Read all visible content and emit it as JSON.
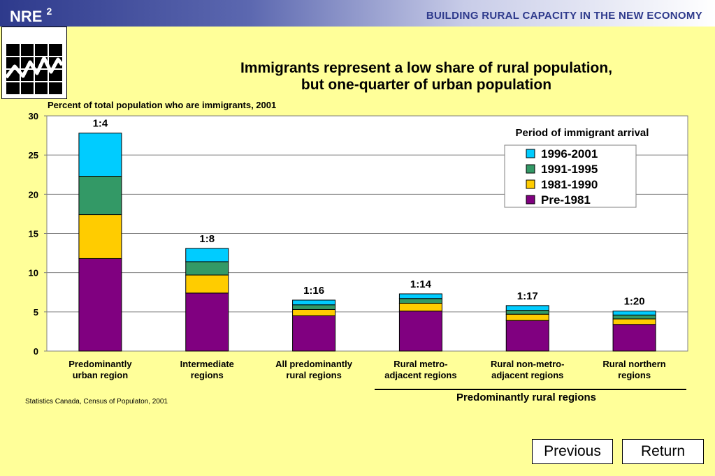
{
  "header": {
    "logo_text": "NRE",
    "logo_sup": "2",
    "tagline": "BUILDING RURAL CAPACITY IN THE NEW ECONOMY"
  },
  "logo_icon": "line-chart-grid-icon",
  "title_line1": "Immigrants represent a low share of rural population,",
  "title_line2": "but one-quarter of urban population",
  "chart_data": {
    "type": "bar",
    "stacked": true,
    "ylabel": "Percent of total population who are immigrants, 2001",
    "ylim": [
      0,
      30
    ],
    "yticks": [
      "0",
      "5",
      "10",
      "15",
      "20",
      "25",
      "30"
    ],
    "grid": true,
    "legend_title": "Period of immigrant arrival",
    "legend_position": "top-right",
    "categories": [
      [
        "Predominantly",
        "urban region"
      ],
      [
        "Intermediate",
        "regions"
      ],
      [
        "All predominantly",
        "rural regions"
      ],
      [
        "Rural metro-",
        "adjacent regions"
      ],
      [
        "Rural non-metro-",
        "adjacent regions"
      ],
      [
        "Rural northern",
        "regions"
      ]
    ],
    "ratio_labels": [
      "1:4",
      "1:8",
      "1:16",
      "1:14",
      "1:17",
      "1:20"
    ],
    "series": [
      {
        "name": "Pre-1981",
        "color": "#800080",
        "values": [
          11.8,
          7.4,
          4.5,
          5.1,
          3.9,
          3.4
        ]
      },
      {
        "name": "1981-1990",
        "color": "#FFCC00",
        "values": [
          5.6,
          2.3,
          0.8,
          1.0,
          0.8,
          0.7
        ]
      },
      {
        "name": "1991-1995",
        "color": "#339966",
        "values": [
          4.9,
          1.7,
          0.6,
          0.6,
          0.5,
          0.5
        ]
      },
      {
        "name": "1996-2001",
        "color": "#00CCFF",
        "values": [
          5.5,
          1.7,
          0.6,
          0.6,
          0.6,
          0.5
        ]
      }
    ],
    "legend_order": [
      "1996-2001",
      "1991-1995",
      "1981-1990",
      "Pre-1981"
    ],
    "group_label": "Predominantly rural regions"
  },
  "source": "Statistics Canada, Census of Populaton, 2001",
  "nav": {
    "previous": "Previous",
    "return": "Return"
  }
}
